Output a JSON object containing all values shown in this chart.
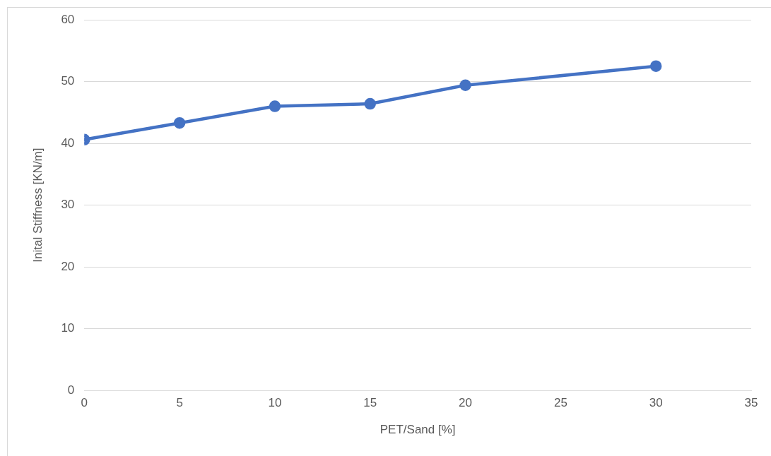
{
  "chart_data": {
    "type": "line",
    "xlabel": "PET/Sand [%]",
    "ylabel": "Inital Stiffness [KN/m]",
    "x": [
      0,
      5,
      10,
      15,
      20,
      30
    ],
    "series": [
      {
        "color": "#4472c4",
        "values": [
          40.6,
          43.3,
          46.0,
          46.4,
          49.4,
          52.5
        ]
      }
    ],
    "xlim": [
      0,
      35
    ],
    "xticks": [
      0,
      5,
      10,
      15,
      20,
      25,
      30,
      35
    ],
    "ylim": [
      0,
      60
    ],
    "yticks": [
      0,
      10,
      20,
      30,
      40,
      50,
      60
    ],
    "grid": "y",
    "legend": false,
    "marker": "circle",
    "line_style": "solid"
  }
}
